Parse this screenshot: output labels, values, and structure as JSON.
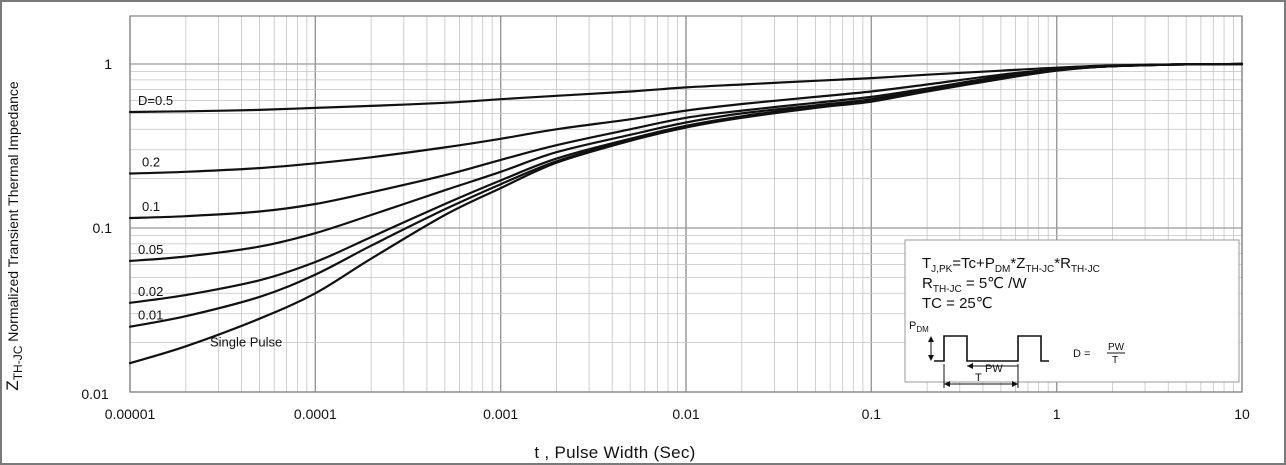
{
  "chart_data": {
    "type": "line",
    "x_scale": "log",
    "y_scale": "log",
    "xlim": [
      1e-05,
      10
    ],
    "ylim": [
      0.01,
      1
    ],
    "grid": true,
    "xlabel": "t , Pulse Width (Sec)",
    "ylabel": {
      "z": "Z",
      "sub": "TH-JC",
      "rest": " Normalized  Transient  Thermal  Impedance"
    },
    "x_ticks": [
      1e-05,
      0.0001,
      0.001,
      0.01,
      0.1,
      1,
      10
    ],
    "x_tick_labels": [
      "0.00001",
      "0.0001",
      "0.001",
      "0.01",
      "0.1",
      "1",
      "10"
    ],
    "y_ticks": [
      0.01,
      0.1,
      1
    ],
    "y_tick_labels": [
      "0.01",
      "0.1",
      "1"
    ],
    "x": [
      1e-05,
      2e-05,
      5e-05,
      0.0001,
      0.0002,
      0.0005,
      0.001,
      0.002,
      0.005,
      0.01,
      0.02,
      0.05,
      0.1,
      0.2,
      0.5,
      1,
      2,
      5,
      10
    ],
    "series": [
      {
        "name": "D=0.5",
        "values": [
          0.51,
          0.515,
          0.525,
          0.54,
          0.555,
          0.58,
          0.61,
          0.64,
          0.68,
          0.72,
          0.75,
          0.79,
          0.82,
          0.86,
          0.91,
          0.95,
          0.98,
          0.995,
          1.0
        ]
      },
      {
        "name": "0.2",
        "values": [
          0.215,
          0.22,
          0.232,
          0.248,
          0.27,
          0.31,
          0.35,
          0.4,
          0.46,
          0.52,
          0.57,
          0.63,
          0.68,
          0.75,
          0.86,
          0.93,
          0.97,
          0.995,
          1.0
        ]
      },
      {
        "name": "0.1",
        "values": [
          0.115,
          0.118,
          0.126,
          0.14,
          0.165,
          0.21,
          0.26,
          0.32,
          0.4,
          0.47,
          0.52,
          0.58,
          0.63,
          0.71,
          0.84,
          0.93,
          0.97,
          0.995,
          1.0
        ]
      },
      {
        "name": "0.05",
        "values": [
          0.063,
          0.067,
          0.077,
          0.093,
          0.12,
          0.17,
          0.22,
          0.29,
          0.37,
          0.44,
          0.5,
          0.56,
          0.61,
          0.7,
          0.83,
          0.92,
          0.97,
          0.995,
          1.0
        ]
      },
      {
        "name": "0.02",
        "values": [
          0.035,
          0.039,
          0.048,
          0.062,
          0.088,
          0.14,
          0.195,
          0.265,
          0.35,
          0.42,
          0.48,
          0.55,
          0.6,
          0.69,
          0.82,
          0.92,
          0.97,
          0.995,
          1.0
        ]
      },
      {
        "name": "0.01",
        "values": [
          0.025,
          0.029,
          0.038,
          0.052,
          0.078,
          0.13,
          0.185,
          0.255,
          0.345,
          0.415,
          0.475,
          0.545,
          0.6,
          0.69,
          0.82,
          0.92,
          0.97,
          0.995,
          1.0
        ]
      },
      {
        "name": "Single Pulse",
        "values": [
          0.015,
          0.019,
          0.028,
          0.04,
          0.065,
          0.12,
          0.175,
          0.25,
          0.34,
          0.41,
          0.47,
          0.54,
          0.59,
          0.68,
          0.81,
          0.91,
          0.97,
          0.995,
          1.0
        ]
      }
    ],
    "series_labels": [
      "D=0.5",
      "0.2",
      "0.1",
      "0.05",
      "0.02",
      "0.01",
      "Single Pulse"
    ],
    "annotation": {
      "line1": {
        "a": "T",
        "a_sub": "J,PK",
        "b": "=Tc+P",
        "b_sub": "DM",
        "c": "*Z",
        "c_sub": "TH-JC",
        "d": "*R",
        "d_sub": "TH-JC"
      },
      "line2": {
        "a": "R",
        "a_sub": "TH-JC",
        "b": " = 5℃ /W"
      },
      "line3": "TC = 25℃",
      "diagram": {
        "pdm": "P",
        "pdm_sub": "DM",
        "pw": "PW",
        "t": "T",
        "duty": "D =",
        "frac_num": "PW",
        "frac_den": "T"
      }
    }
  }
}
